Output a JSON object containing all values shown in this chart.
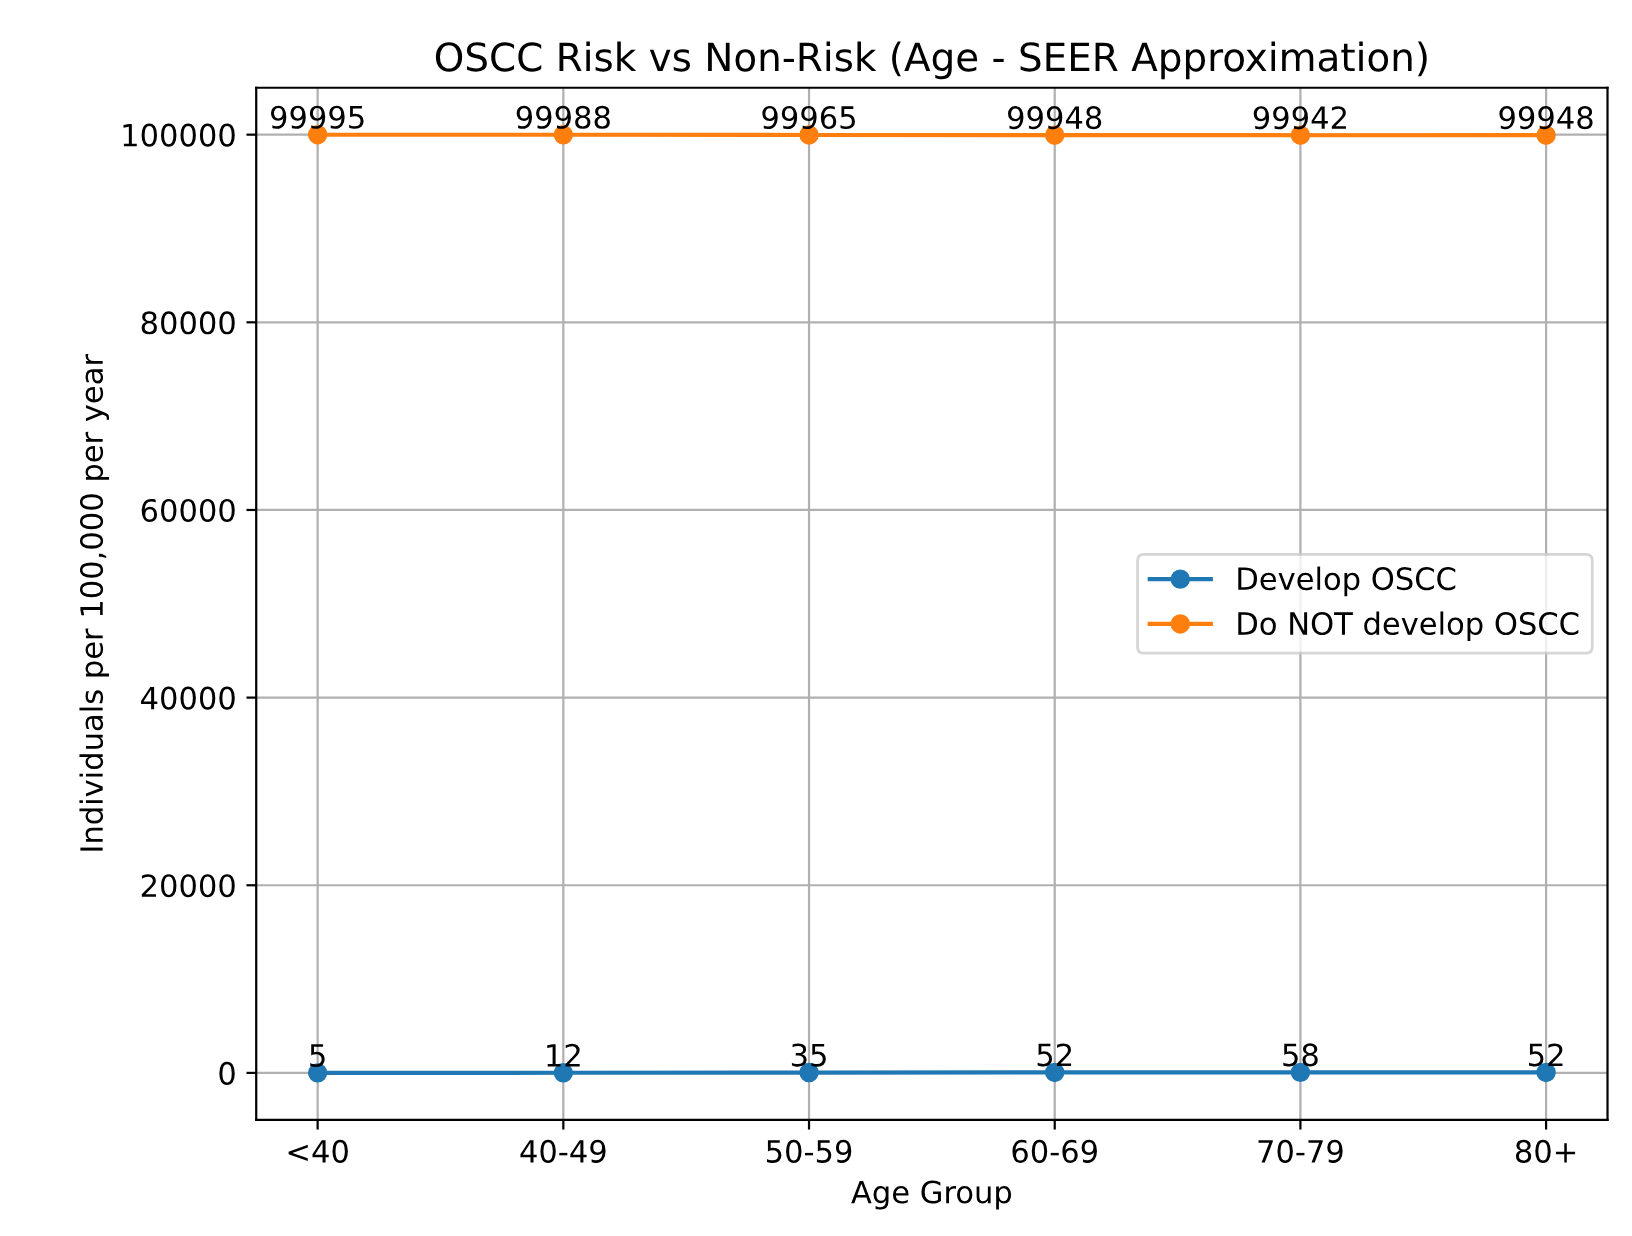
{
  "chart_data": {
    "type": "line",
    "title": "OSCC Risk vs Non-Risk (Age - SEER Approximation)",
    "xlabel": "Age Group",
    "ylabel": "Individuals per 100,000 per year",
    "categories": [
      "<40",
      "40-49",
      "50-59",
      "60-69",
      "70-79",
      "80+"
    ],
    "series": [
      {
        "name": "Develop OSCC",
        "color": "#1f77b4",
        "values": [
          5,
          12,
          35,
          52,
          58,
          52
        ]
      },
      {
        "name": "Do NOT develop OSCC",
        "color": "#ff7f0e",
        "values": [
          99995,
          99988,
          99965,
          99948,
          99942,
          99948
        ]
      }
    ],
    "ylim": [
      -5000,
      105000
    ],
    "yticks": [
      0,
      20000,
      40000,
      60000,
      80000,
      100000
    ],
    "grid": true,
    "legend": "center right",
    "marker": "circle",
    "line_style": "solid",
    "data_labels": true
  }
}
